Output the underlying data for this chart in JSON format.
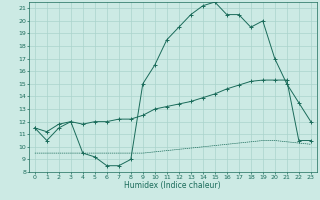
{
  "xlabel": "Humidex (Indice chaleur)",
  "bg_color": "#cceae4",
  "line_color": "#1a6b5a",
  "grid_color": "#aad4cc",
  "xlim": [
    -0.5,
    23.5
  ],
  "ylim": [
    8,
    21.5
  ],
  "yticks": [
    8,
    9,
    10,
    11,
    12,
    13,
    14,
    15,
    16,
    17,
    18,
    19,
    20,
    21
  ],
  "xticks": [
    0,
    1,
    2,
    3,
    4,
    5,
    6,
    7,
    8,
    9,
    10,
    11,
    12,
    13,
    14,
    15,
    16,
    17,
    18,
    19,
    20,
    21,
    22,
    23
  ],
  "s1_x": [
    0,
    1,
    2,
    3,
    4,
    5,
    6,
    7,
    8,
    9,
    10,
    11,
    12,
    13,
    14,
    15,
    16,
    17,
    18,
    19,
    20,
    21,
    22,
    23
  ],
  "s1_y": [
    11.5,
    10.5,
    11.5,
    12.0,
    9.5,
    9.2,
    8.5,
    8.5,
    9.0,
    15.0,
    16.5,
    18.5,
    19.5,
    20.5,
    21.2,
    21.5,
    20.5,
    20.5,
    19.5,
    20.0,
    17.0,
    15.0,
    13.5,
    12.0
  ],
  "s2_x": [
    0,
    1,
    2,
    3,
    4,
    5,
    6,
    7,
    8,
    9,
    10,
    11,
    12,
    13,
    14,
    15,
    16,
    17,
    18,
    19,
    20,
    21,
    22,
    23
  ],
  "s2_y": [
    11.5,
    11.2,
    11.8,
    12.0,
    11.8,
    12.0,
    12.0,
    12.2,
    12.2,
    12.5,
    13.0,
    13.2,
    13.4,
    13.6,
    13.9,
    14.2,
    14.6,
    14.9,
    15.2,
    15.3,
    15.3,
    15.3,
    10.5,
    10.5
  ],
  "s3_x": [
    0,
    1,
    2,
    3,
    4,
    5,
    6,
    7,
    8,
    9,
    10,
    11,
    12,
    13,
    14,
    15,
    16,
    17,
    18,
    19,
    20,
    21,
    22,
    23
  ],
  "s3_y": [
    9.5,
    9.5,
    9.5,
    9.5,
    9.5,
    9.5,
    9.5,
    9.5,
    9.5,
    9.5,
    9.6,
    9.7,
    9.8,
    9.9,
    10.0,
    10.1,
    10.2,
    10.3,
    10.4,
    10.5,
    10.5,
    10.4,
    10.3,
    10.2
  ]
}
